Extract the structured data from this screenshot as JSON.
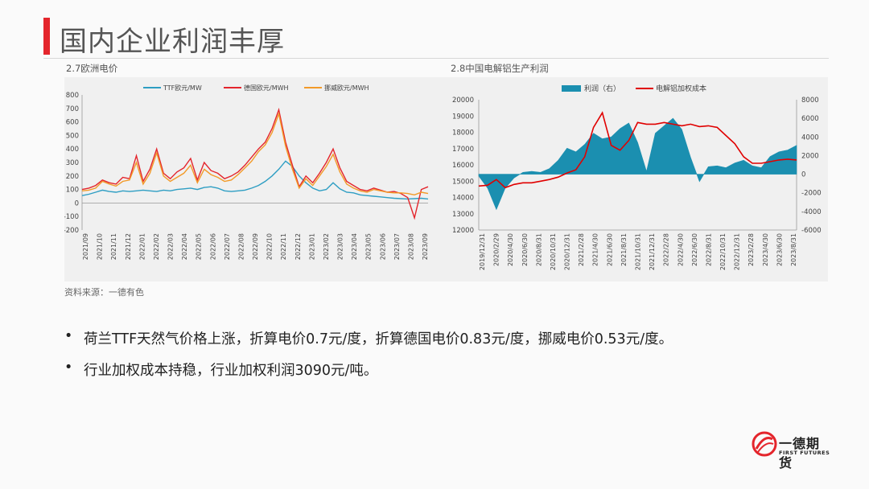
{
  "page": {
    "title": "国内企业利润丰厚",
    "source": "资料来源：一德有色",
    "bullets": [
      "荷兰TTF天然气价格上涨，折算电价0.7元/度，折算德国电价0.83元/度，挪威电价0.53元/度。",
      "行业加权成本持稳，行业加权利润3090元/吨。"
    ],
    "bullet_symbol": "•",
    "logo": {
      "name": "一德期货",
      "sub": "FIRST FUTURES",
      "color": "#e4252c"
    },
    "accent_color": "#e4252c"
  },
  "chart_data": [
    {
      "caption": "2.7欧洲电价",
      "type": "line",
      "ylim": [
        -200,
        800
      ],
      "yticks": [
        -200,
        -100,
        0,
        100,
        200,
        300,
        400,
        500,
        600,
        700,
        800
      ],
      "x_ticks": [
        "2021/09",
        "2021/10",
        "2021/11",
        "2021/12",
        "2022/01",
        "2022/02",
        "2022/03",
        "2022/04",
        "2022/05",
        "2022/06",
        "2022/07",
        "2022/08",
        "2022/09",
        "2022/10",
        "2022/11",
        "2022/12",
        "2023/01",
        "2023/02",
        "2023/03",
        "2023/04",
        "2023/05",
        "2023/06",
        "2023/07",
        "2023/08",
        "2023/09"
      ],
      "legend_position": "top",
      "series": [
        {
          "name": "TTF欧元/MW",
          "color": "#2e9ec3",
          "values": [
            55,
            65,
            80,
            95,
            85,
            80,
            90,
            85,
            90,
            95,
            90,
            85,
            95,
            90,
            100,
            105,
            110,
            100,
            115,
            120,
            110,
            90,
            85,
            90,
            95,
            110,
            130,
            160,
            200,
            250,
            310,
            270,
            200,
            150,
            110,
            90,
            100,
            150,
            105,
            80,
            75,
            60,
            55,
            50,
            45,
            40,
            35,
            32,
            30,
            32,
            35,
            30
          ]
        },
        {
          "name": "德国欧元/MWH",
          "color": "#e4252c",
          "values": [
            100,
            110,
            130,
            170,
            150,
            140,
            190,
            180,
            350,
            160,
            250,
            400,
            220,
            180,
            230,
            260,
            330,
            170,
            300,
            240,
            220,
            180,
            200,
            230,
            280,
            340,
            400,
            450,
            550,
            690,
            450,
            280,
            120,
            200,
            150,
            220,
            300,
            400,
            260,
            160,
            130,
            100,
            90,
            110,
            95,
            80,
            85,
            70,
            40,
            -110,
            100,
            120
          ]
        },
        {
          "name": "挪威欧元/MWH",
          "color": "#f39a28",
          "values": [
            90,
            95,
            110,
            160,
            140,
            125,
            160,
            170,
            300,
            140,
            220,
            370,
            200,
            160,
            190,
            220,
            280,
            150,
            250,
            210,
            190,
            160,
            170,
            210,
            260,
            310,
            380,
            430,
            520,
            660,
            420,
            250,
            110,
            180,
            130,
            200,
            270,
            360,
            230,
            140,
            110,
            90,
            80,
            100,
            90,
            80,
            75,
            75,
            70,
            60,
            80,
            70
          ]
        }
      ]
    },
    {
      "caption": "2.8中国电解铝生产利润",
      "type": "area+line",
      "ylim_left": [
        12000,
        20000
      ],
      "yticks_left": [
        12000,
        13000,
        14000,
        15000,
        16000,
        17000,
        18000,
        19000,
        20000
      ],
      "ylim_right": [
        -6000,
        8000
      ],
      "yticks_right": [
        -6000,
        -4000,
        -2000,
        0,
        2000,
        4000,
        6000,
        8000
      ],
      "x_ticks": [
        "2019/12/31",
        "2020/2/29",
        "2020/4/30",
        "2020/6/30",
        "2020/8/31",
        "2020/10/31",
        "2020/12/31",
        "2021/2/28",
        "2021/4/30",
        "2021/6/30",
        "2021/8/31",
        "2021/10/31",
        "2021/12/31",
        "2022/2/28",
        "2022/4/30",
        "2022/6/30",
        "2022/8/31",
        "2022/10/31",
        "2022/12/31",
        "2023/2/28",
        "2023/4/30",
        "2023/6/30",
        "2023/8/31"
      ],
      "legend_position": "top",
      "series": [
        {
          "name": "利润（右）",
          "axis": "right",
          "color": "#1b8fb0",
          "values": [
            -200,
            -1500,
            -3800,
            -1500,
            -400,
            200,
            300,
            200,
            600,
            1500,
            2800,
            2400,
            3200,
            4400,
            3800,
            4000,
            4900,
            5500,
            3400,
            300,
            4400,
            5200,
            6000,
            4800,
            1800,
            -800,
            800,
            900,
            700,
            1200,
            1500,
            900,
            700,
            1900,
            2400,
            2600,
            3090
          ]
        },
        {
          "name": "电解铝加权成本",
          "axis": "left",
          "color": "#e00000",
          "values": [
            14700,
            14750,
            15100,
            14600,
            14800,
            14900,
            14900,
            15000,
            15100,
            15250,
            15500,
            15700,
            16500,
            18300,
            19200,
            17200,
            16900,
            17500,
            18600,
            18500,
            18500,
            18600,
            18500,
            18400,
            18500,
            18350,
            18400,
            18300,
            17800,
            17300,
            16500,
            16100,
            16100,
            16200,
            16300,
            16350,
            16300
          ]
        }
      ]
    }
  ]
}
